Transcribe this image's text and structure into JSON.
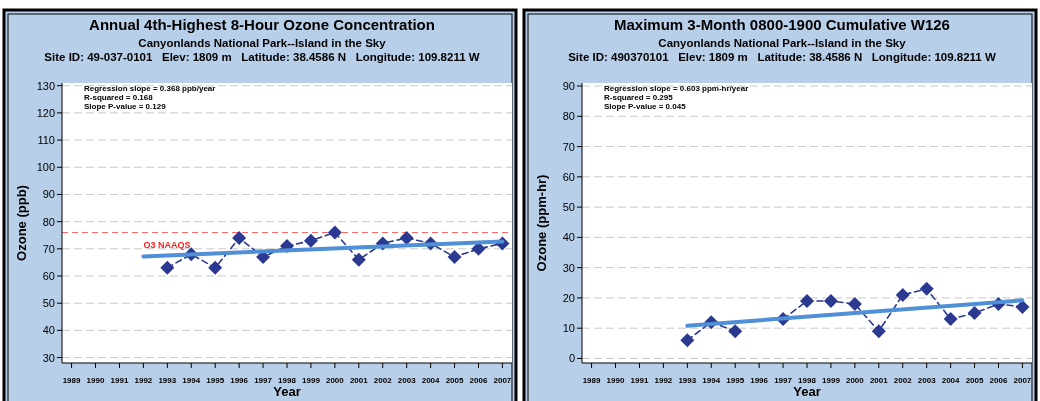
{
  "chart_data": [
    {
      "type": "line",
      "title": "Annual 4th-Highest 8-Hour Ozone Concentration",
      "subtitle": "Canyonlands National Park--Island in the Sky\nSite ID: 49-037-0101   Elev: 1809 m   Latitude: 38.4586 N   Longitude: 109.8211 W",
      "xlabel": "Year",
      "ylabel": "Ozone (ppb)",
      "annotations": [
        "Regression slope = 0.368 ppb/year",
        "R-squared = 0.168",
        "Slope P-value = 0.129"
      ],
      "x": [
        1993,
        1994,
        1995,
        1996,
        1997,
        1998,
        1999,
        2000,
        2001,
        2002,
        2003,
        2004,
        2005,
        2006,
        2007
      ],
      "series": [
        {
          "color": "#2b3990",
          "marker": "diamond",
          "line_style": "dashed",
          "values": [
            63,
            68,
            63,
            74,
            67,
            71,
            73,
            76,
            66,
            72,
            74,
            72,
            67,
            70,
            72
          ]
        },
        {
          "color": "#4f8fd6",
          "marker": "none",
          "line_style": "solid",
          "x": [
            1992,
            2007
          ],
          "values": [
            67.2,
            72.7
          ]
        }
      ],
      "ref_lines": [
        {
          "axis": "y",
          "value": 76,
          "label": "O3 NAAQS",
          "color": "#ff6666",
          "line_style": "dashed"
        }
      ],
      "xlim": [
        1988.6,
        2007.4
      ],
      "xticks": [
        1989,
        1990,
        1991,
        1992,
        1993,
        1994,
        1995,
        1996,
        1997,
        1998,
        1999,
        2000,
        2001,
        2002,
        2003,
        2004,
        2005,
        2006,
        2007
      ],
      "ylim": [
        28,
        131
      ],
      "yticks": [
        30,
        40,
        50,
        60,
        70,
        80,
        90,
        100,
        110,
        120,
        130
      ],
      "grid": "y"
    },
    {
      "type": "line",
      "title": "Maximum 3-Month 0800-1900 Cumulative W126",
      "subtitle": "Canyonlands National Park--Island in the Sky\nSite ID: 490370101   Elev: 1809 m   Latitude: 38.4586 N   Longitude: 109.8211 W",
      "xlabel": "Year",
      "ylabel": "Ozone (ppm-hr)",
      "annotations": [
        "Regression slope = 0.603 ppm-hr/year",
        "R-squared = 0.295",
        "Slope P-value = 0.045"
      ],
      "x": [
        1993,
        1994,
        1995,
        1996,
        1997,
        1998,
        1999,
        2000,
        2001,
        2002,
        2003,
        2004,
        2005,
        2006,
        2007
      ],
      "series": [
        {
          "color": "#2b3990",
          "marker": "diamond",
          "line_style": "dashed",
          "values": [
            6,
            12,
            9,
            null,
            13,
            19,
            19,
            18,
            9,
            21,
            23,
            13,
            15,
            18,
            17
          ]
        },
        {
          "color": "#4f8fd6",
          "marker": "none",
          "line_style": "solid",
          "x": [
            1993,
            2007
          ],
          "values": [
            10.8,
            19.2
          ]
        }
      ],
      "xlim": [
        1988.6,
        2007.4
      ],
      "xticks": [
        1989,
        1990,
        1991,
        1992,
        1993,
        1994,
        1995,
        1996,
        1997,
        1998,
        1999,
        2000,
        2001,
        2002,
        2003,
        2004,
        2005,
        2006,
        2007
      ],
      "ylim": [
        -1.5,
        91
      ],
      "yticks": [
        0,
        10,
        20,
        30,
        40,
        50,
        60,
        70,
        80,
        90
      ],
      "grid": "y"
    }
  ]
}
